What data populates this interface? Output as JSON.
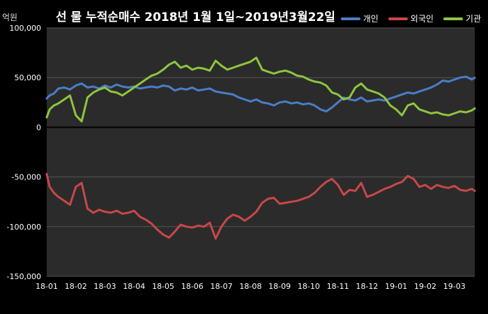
{
  "chart_data": {
    "type": "line",
    "title": "선 물 누적순매수 2018년 1월 1일~2019년3월22일",
    "ylabel": "억원",
    "ylim": [
      -150000,
      100000
    ],
    "yticks": [
      "100,000",
      "50,000",
      "0",
      "-50,000",
      "-100,000",
      "-150,000"
    ],
    "ytick_values": [
      100000,
      50000,
      0,
      -50000,
      -100000,
      -150000
    ],
    "xlabels": [
      "18-01",
      "18-02",
      "18-03",
      "18-04",
      "18-05",
      "18-06",
      "18-07",
      "18-08",
      "18-09",
      "18-10",
      "18-11",
      "18-12",
      "19-01",
      "19-02",
      "19-03"
    ],
    "xlim": [
      0,
      14.7
    ],
    "grid": true,
    "legend_position": "top-right",
    "series": [
      {
        "name": "개인",
        "color": "#4a7dc8",
        "x": [
          0,
          0.1,
          0.25,
          0.4,
          0.6,
          0.8,
          1.0,
          1.2,
          1.4,
          1.6,
          1.8,
          2.0,
          2.2,
          2.4,
          2.6,
          2.8,
          3.0,
          3.2,
          3.4,
          3.6,
          3.8,
          4.0,
          4.2,
          4.4,
          4.6,
          4.8,
          5.0,
          5.2,
          5.4,
          5.6,
          5.8,
          6.0,
          6.2,
          6.4,
          6.6,
          6.8,
          7.0,
          7.2,
          7.4,
          7.6,
          7.8,
          8.0,
          8.2,
          8.4,
          8.6,
          8.8,
          9.0,
          9.2,
          9.4,
          9.6,
          9.8,
          10.0,
          10.2,
          10.4,
          10.6,
          10.8,
          11.0,
          11.2,
          11.4,
          11.6,
          11.8,
          12.0,
          12.2,
          12.4,
          12.6,
          12.8,
          13.0,
          13.2,
          13.4,
          13.6,
          13.8,
          14.0,
          14.2,
          14.4,
          14.6,
          14.7
        ],
        "values": [
          29000,
          32000,
          34000,
          39000,
          40000,
          38000,
          42000,
          44000,
          40000,
          41000,
          39000,
          42000,
          40000,
          43000,
          41000,
          40000,
          41000,
          39000,
          40000,
          41000,
          40000,
          42000,
          41000,
          37000,
          39000,
          38000,
          40000,
          37000,
          38000,
          39000,
          36000,
          35000,
          34000,
          33000,
          30000,
          28000,
          26000,
          28000,
          25000,
          24000,
          22000,
          25000,
          26000,
          24000,
          25000,
          23000,
          24000,
          22000,
          18000,
          16000,
          20000,
          25000,
          30000,
          28000,
          27000,
          30000,
          26000,
          27000,
          28000,
          27000,
          29000,
          31000,
          33000,
          35000,
          34000,
          36000,
          38000,
          40000,
          43000,
          47000,
          46000,
          48000,
          50000,
          51000,
          48000,
          50000
        ]
      },
      {
        "name": "외국인",
        "color": "#c84848",
        "x": [
          0,
          0.1,
          0.25,
          0.4,
          0.6,
          0.8,
          1.0,
          1.2,
          1.4,
          1.6,
          1.8,
          2.0,
          2.2,
          2.4,
          2.6,
          2.8,
          3.0,
          3.2,
          3.4,
          3.6,
          3.8,
          4.0,
          4.2,
          4.4,
          4.6,
          4.8,
          5.0,
          5.2,
          5.4,
          5.6,
          5.8,
          6.0,
          6.2,
          6.4,
          6.6,
          6.8,
          7.0,
          7.2,
          7.4,
          7.6,
          7.8,
          8.0,
          8.2,
          8.4,
          8.6,
          8.8,
          9.0,
          9.2,
          9.4,
          9.6,
          9.8,
          10.0,
          10.2,
          10.4,
          10.6,
          10.8,
          11.0,
          11.2,
          11.4,
          11.6,
          11.8,
          12.0,
          12.2,
          12.4,
          12.6,
          12.8,
          13.0,
          13.2,
          13.4,
          13.6,
          13.8,
          14.0,
          14.2,
          14.4,
          14.6,
          14.7
        ],
        "values": [
          -47000,
          -60000,
          -66000,
          -70000,
          -74000,
          -78000,
          -60000,
          -56000,
          -82000,
          -86000,
          -83000,
          -85000,
          -86000,
          -84000,
          -87000,
          -86000,
          -84000,
          -90000,
          -93000,
          -97000,
          -103000,
          -108000,
          -111000,
          -105000,
          -98000,
          -100000,
          -101000,
          -99000,
          -100000,
          -96000,
          -112000,
          -100000,
          -92000,
          -88000,
          -90000,
          -94000,
          -90000,
          -85000,
          -76000,
          -72000,
          -71000,
          -77000,
          -76000,
          -75000,
          -74000,
          -72000,
          -70000,
          -66000,
          -60000,
          -55000,
          -52000,
          -58000,
          -68000,
          -63000,
          -64000,
          -56000,
          -70000,
          -68000,
          -65000,
          -62000,
          -60000,
          -57000,
          -55000,
          -49000,
          -52000,
          -60000,
          -58000,
          -62000,
          -58000,
          -60000,
          -61000,
          -59000,
          -63000,
          -64000,
          -62000,
          -64000
        ]
      },
      {
        "name": "기관",
        "color": "#8ec63f",
        "x": [
          0,
          0.1,
          0.25,
          0.4,
          0.6,
          0.8,
          1.0,
          1.2,
          1.4,
          1.6,
          1.8,
          2.0,
          2.2,
          2.4,
          2.6,
          2.8,
          3.0,
          3.2,
          3.4,
          3.6,
          3.8,
          4.0,
          4.2,
          4.4,
          4.6,
          4.8,
          5.0,
          5.2,
          5.4,
          5.6,
          5.8,
          6.0,
          6.2,
          6.4,
          6.6,
          6.8,
          7.0,
          7.2,
          7.4,
          7.6,
          7.8,
          8.0,
          8.2,
          8.4,
          8.6,
          8.8,
          9.0,
          9.2,
          9.4,
          9.6,
          9.8,
          10.0,
          10.2,
          10.4,
          10.6,
          10.8,
          11.0,
          11.2,
          11.4,
          11.6,
          11.8,
          12.0,
          12.2,
          12.4,
          12.6,
          12.8,
          13.0,
          13.2,
          13.4,
          13.6,
          13.8,
          14.0,
          14.2,
          14.4,
          14.6,
          14.7
        ],
        "values": [
          10000,
          18000,
          22000,
          24000,
          28000,
          32000,
          12000,
          6000,
          30000,
          35000,
          38000,
          40000,
          36000,
          35000,
          32000,
          36000,
          40000,
          44000,
          48000,
          52000,
          54000,
          58000,
          63000,
          66000,
          60000,
          62000,
          58000,
          60000,
          59000,
          57000,
          67000,
          62000,
          58000,
          60000,
          62000,
          64000,
          66000,
          70000,
          58000,
          56000,
          54000,
          56000,
          57000,
          55000,
          52000,
          51000,
          48000,
          46000,
          45000,
          42000,
          35000,
          33000,
          28000,
          30000,
          40000,
          44000,
          38000,
          36000,
          34000,
          30000,
          22000,
          18000,
          12000,
          22000,
          24000,
          18000,
          16000,
          14000,
          15000,
          13000,
          12000,
          14000,
          16000,
          15000,
          17000,
          19000
        ]
      }
    ]
  }
}
